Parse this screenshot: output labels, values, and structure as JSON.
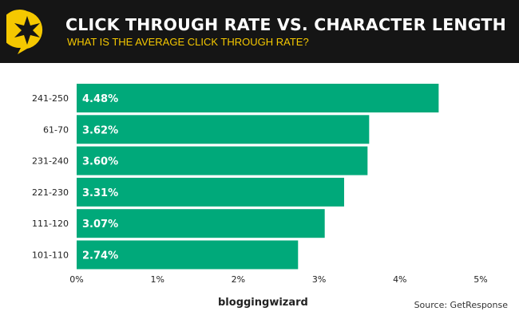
{
  "header": {
    "title": "CLICK THROUGH RATE VS. CHARACTER LENGTH",
    "subtitle": "WHAT IS THE AVERAGE CLICK THROUGH RATE?"
  },
  "footer": {
    "brand": "bloggingwizard",
    "source": "Source: GetResponse"
  },
  "colors": {
    "bar": "#00a97a",
    "header_bg": "#151515",
    "accent": "#f5c800"
  },
  "chart_data": {
    "type": "bar",
    "orientation": "horizontal",
    "categories": [
      "241-250",
      "61-70",
      "231-240",
      "221-230",
      "111-120",
      "101-110"
    ],
    "values": [
      4.48,
      3.62,
      3.6,
      3.31,
      3.07,
      2.74
    ],
    "data_labels": [
      "4.48%",
      "3.62%",
      "3.60%",
      "3.31%",
      "3.07%",
      "2.74%"
    ],
    "xlim": [
      0,
      5
    ],
    "x_ticks": [
      "0%",
      "1%",
      "2%",
      "3%",
      "4%",
      "5%"
    ],
    "grid": false
  }
}
